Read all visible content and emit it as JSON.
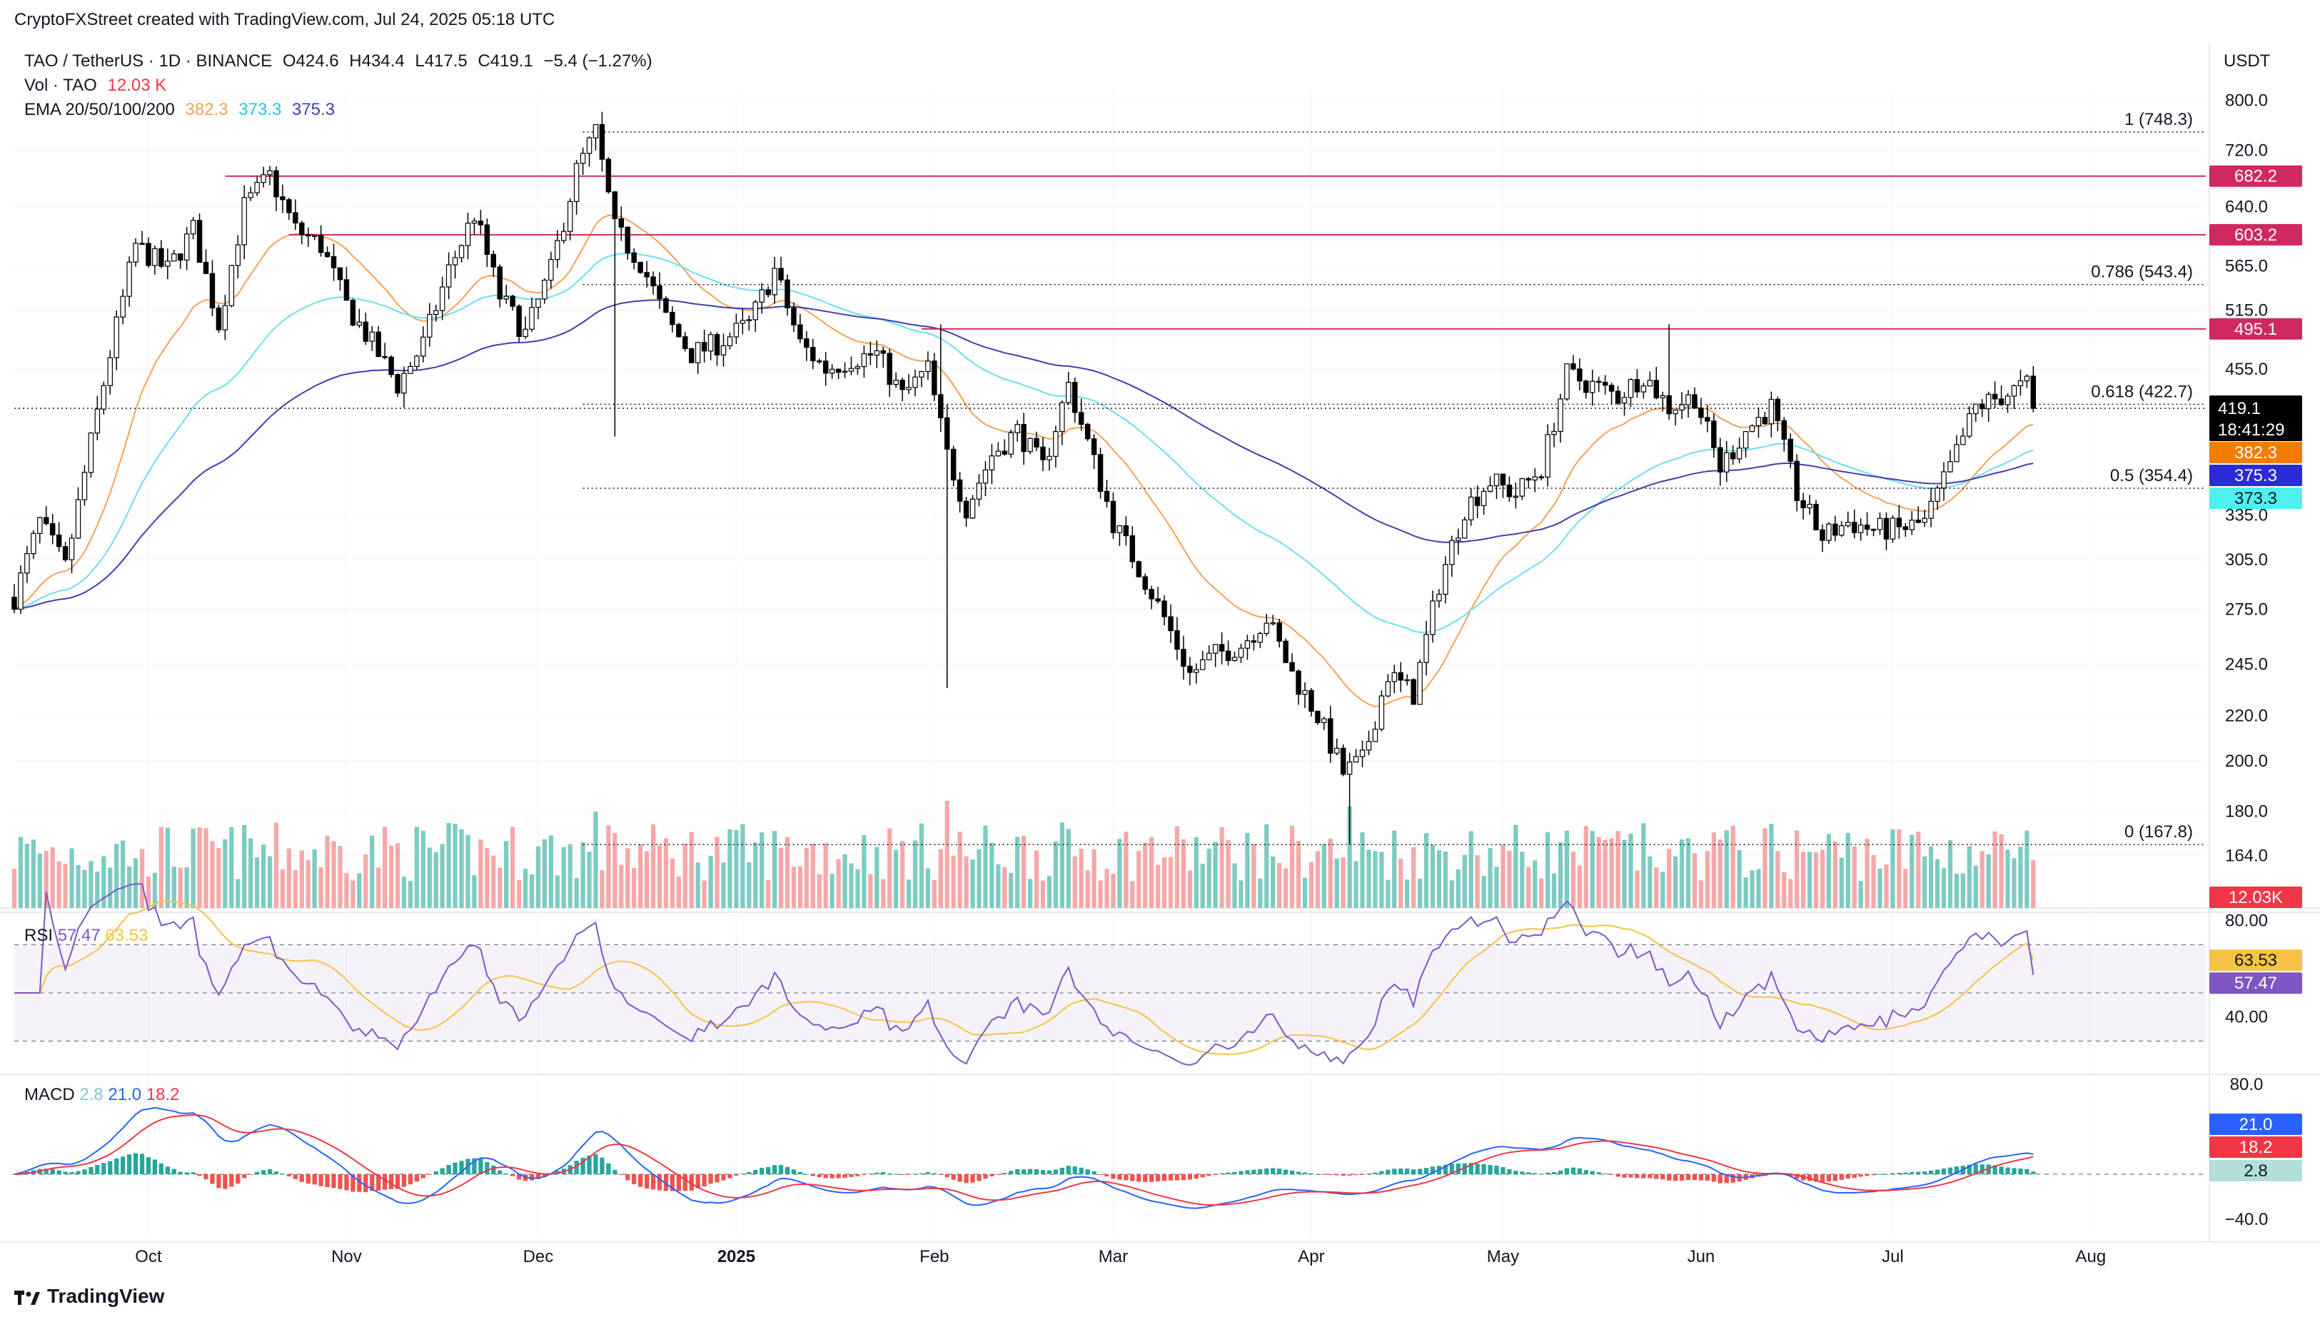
{
  "header": {
    "creator_line": "CryptoFXStreet created with TradingView.com, Jul 24, 2025 05:18 UTC",
    "symbol": "TAO / TetherUS · 1D · BINANCE",
    "open": "O424.6",
    "high": "H434.4",
    "low": "L417.5",
    "close": "C419.1",
    "change": "−5.4 (−1.27%)",
    "vol_label": "Vol · TAO",
    "vol_value": "12.03 K",
    "ema_label": "EMA 20/50/100/200",
    "ema_values": [
      "382.3",
      "373.3",
      "375.3"
    ],
    "currency": "USDT"
  },
  "colors": {
    "candle": "#000000",
    "ema20": "#f5a255",
    "ema50": "#6ae0ee",
    "ema100": "#2196f3",
    "ema200": "#3f3fb0",
    "resistance": "#d0295f",
    "fib": "#131722",
    "vol_up": "#7ecbc3",
    "vol_down": "#f5a8a8",
    "rsi": "#7e57c2",
    "rsi_ma": "#f6c343",
    "macd": "#2962ff",
    "signal": "#f23645",
    "hist_up": "#26a69a",
    "hist_down": "#ef5350"
  },
  "price_badges": {
    "last": "419.1",
    "countdown": "18:41:29",
    "ema20": "382.3",
    "ema100": "375.3",
    "ema50": "373.3",
    "volume": "12.03K",
    "res1": "682.2",
    "res2": "603.2",
    "res3": "495.1"
  },
  "fib_levels": [
    {
      "label": "1 (748.3)",
      "price": 748.3
    },
    {
      "label": "0.786 (543.4)",
      "price": 543.4
    },
    {
      "label": "0.618 (422.7)",
      "price": 422.7
    },
    {
      "label": "0.5 (354.4)",
      "price": 354.4
    },
    {
      "label": "0 (167.8)",
      "price": 167.8
    }
  ],
  "rsi": {
    "label": "RSI",
    "value": "57.47",
    "ma_value": "63.53",
    "axis_ticks": [
      "80.00",
      "40.00"
    ]
  },
  "macd": {
    "label": "MACD",
    "hist": "2.8",
    "macd": "21.0",
    "signal": "18.2",
    "axis_ticks": [
      "80.0",
      "−40.0"
    ]
  },
  "footer": {
    "brand": "TradingView"
  },
  "chart_data": {
    "type": "candlestick",
    "title": "TAO / TetherUS · 1D · BINANCE",
    "y_axis": {
      "scale": "log",
      "ticks": [
        800.0,
        720.0,
        640.0,
        565.0,
        515.0,
        455.0,
        335.0,
        305.0,
        275.0,
        245.0,
        220.0,
        200.0,
        180.0,
        164.0
      ],
      "ylim": [
        150,
        815
      ]
    },
    "x_ticks": [
      "Oct",
      "Nov",
      "Dec",
      "2025",
      "Feb",
      "Mar",
      "Apr",
      "May",
      "Jun",
      "Jul",
      "Aug"
    ],
    "x_tick_dates": [
      "2024-10-01",
      "2024-11-01",
      "2024-12-01",
      "2025-01-01",
      "2025-02-01",
      "2025-03-01",
      "2025-04-01",
      "2025-05-01",
      "2025-06-01",
      "2025-07-01",
      "2025-08-01"
    ],
    "x_range": [
      "2024-09-10",
      "2025-08-19"
    ],
    "anchors": [
      [
        "2024-09-10",
        282
      ],
      [
        "2024-09-14",
        330
      ],
      [
        "2024-09-18",
        300
      ],
      [
        "2024-09-22",
        390
      ],
      [
        "2024-09-25",
        470
      ],
      [
        "2024-09-29",
        590
      ],
      [
        "2024-10-04",
        560
      ],
      [
        "2024-10-08",
        610
      ],
      [
        "2024-10-12",
        500
      ],
      [
        "2024-10-16",
        640
      ],
      [
        "2024-10-20",
        682
      ],
      [
        "2024-10-24",
        610
      ],
      [
        "2024-10-28",
        590
      ],
      [
        "2024-11-01",
        520
      ],
      [
        "2024-11-05",
        480
      ],
      [
        "2024-11-09",
        440
      ],
      [
        "2024-11-13",
        480
      ],
      [
        "2024-11-17",
        560
      ],
      [
        "2024-11-21",
        630
      ],
      [
        "2024-11-25",
        530
      ],
      [
        "2024-11-29",
        490
      ],
      [
        "2024-12-03",
        560
      ],
      [
        "2024-12-07",
        690
      ],
      [
        "2024-12-10",
        748
      ],
      [
        "2024-12-13",
        610
      ],
      [
        "2024-12-17",
        570
      ],
      [
        "2024-12-21",
        505
      ],
      [
        "2024-12-25",
        470
      ],
      [
        "2024-12-29",
        480
      ],
      [
        "2025-01-03",
        500
      ],
      [
        "2025-01-07",
        560
      ],
      [
        "2025-01-11",
        480
      ],
      [
        "2025-01-15",
        455
      ],
      [
        "2025-01-19",
        465
      ],
      [
        "2025-01-23",
        470
      ],
      [
        "2025-01-27",
        430
      ],
      [
        "2025-01-31",
        455
      ],
      [
        "2025-02-03",
        380
      ],
      [
        "2025-02-06",
        340
      ],
      [
        "2025-02-10",
        380
      ],
      [
        "2025-02-14",
        400
      ],
      [
        "2025-02-18",
        370
      ],
      [
        "2025-02-22",
        440
      ],
      [
        "2025-02-25",
        390
      ],
      [
        "2025-03-01",
        330
      ],
      [
        "2025-03-05",
        300
      ],
      [
        "2025-03-09",
        270
      ],
      [
        "2025-03-13",
        240
      ],
      [
        "2025-03-17",
        250
      ],
      [
        "2025-03-21",
        255
      ],
      [
        "2025-03-25",
        270
      ],
      [
        "2025-03-29",
        240
      ],
      [
        "2025-04-02",
        220
      ],
      [
        "2025-04-06",
        195
      ],
      [
        "2025-04-09",
        200
      ],
      [
        "2025-04-13",
        240
      ],
      [
        "2025-04-17",
        230
      ],
      [
        "2025-04-21",
        290
      ],
      [
        "2025-04-25",
        340
      ],
      [
        "2025-04-29",
        360
      ],
      [
        "2025-05-03",
        350
      ],
      [
        "2025-05-07",
        370
      ],
      [
        "2025-05-11",
        450
      ],
      [
        "2025-05-15",
        440
      ],
      [
        "2025-05-19",
        430
      ],
      [
        "2025-05-23",
        450
      ],
      [
        "2025-05-27",
        420
      ],
      [
        "2025-05-31",
        430
      ],
      [
        "2025-06-04",
        370
      ],
      [
        "2025-06-08",
        400
      ],
      [
        "2025-06-12",
        420
      ],
      [
        "2025-06-16",
        350
      ],
      [
        "2025-06-20",
        320
      ],
      [
        "2025-06-24",
        330
      ],
      [
        "2025-06-28",
        325
      ],
      [
        "2025-07-02",
        325
      ],
      [
        "2025-07-06",
        330
      ],
      [
        "2025-07-10",
        370
      ],
      [
        "2025-07-14",
        420
      ],
      [
        "2025-07-18",
        430
      ],
      [
        "2025-07-22",
        440
      ],
      [
        "2025-07-23",
        419.1
      ]
    ],
    "last_close": 419.1,
    "resistance_levels": [
      682.2,
      603.2,
      495.1
    ],
    "ema_last": {
      "ema20": 382.3,
      "ema50": 373.3,
      "ema100": 375.3
    },
    "rsi_last": 57.47,
    "rsi_ma_last": 63.53,
    "macd_last": 21.0,
    "signal_last": 18.2,
    "hist_last": 2.8
  }
}
